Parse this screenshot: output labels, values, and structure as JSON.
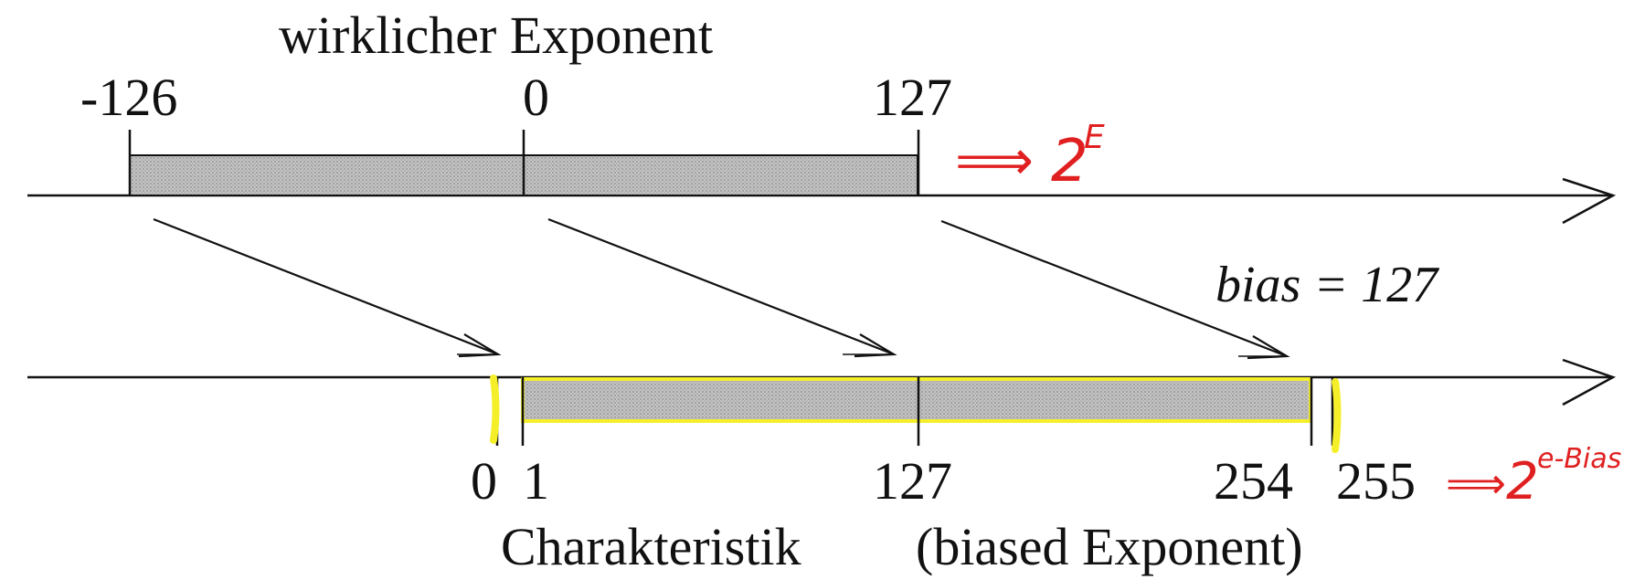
{
  "diagram": {
    "top_title": "wirklicher Exponent",
    "top_ticks": [
      {
        "label": "-126"
      },
      {
        "label": "0"
      },
      {
        "label": "127"
      }
    ],
    "bias_label": "bias = 127",
    "bottom_ticks": [
      {
        "label": "0"
      },
      {
        "label": "1"
      },
      {
        "label": "127"
      },
      {
        "label": "254"
      },
      {
        "label": "255"
      }
    ],
    "bottom_title_left": "Charakteristik",
    "bottom_title_right": "(biased Exponent)",
    "annotations": {
      "top_formula_arrow": "⟹",
      "top_formula_base": "2",
      "top_formula_exp": "E",
      "bottom_formula_arrow": "⟹",
      "bottom_formula_base": "2",
      "bottom_formula_exp": "e-Bias"
    },
    "colors": {
      "bar_fill": "#b8b8b8",
      "line": "#111111",
      "annotation_red": "#e02020",
      "highlight_yellow": "#f5ef2a"
    }
  }
}
